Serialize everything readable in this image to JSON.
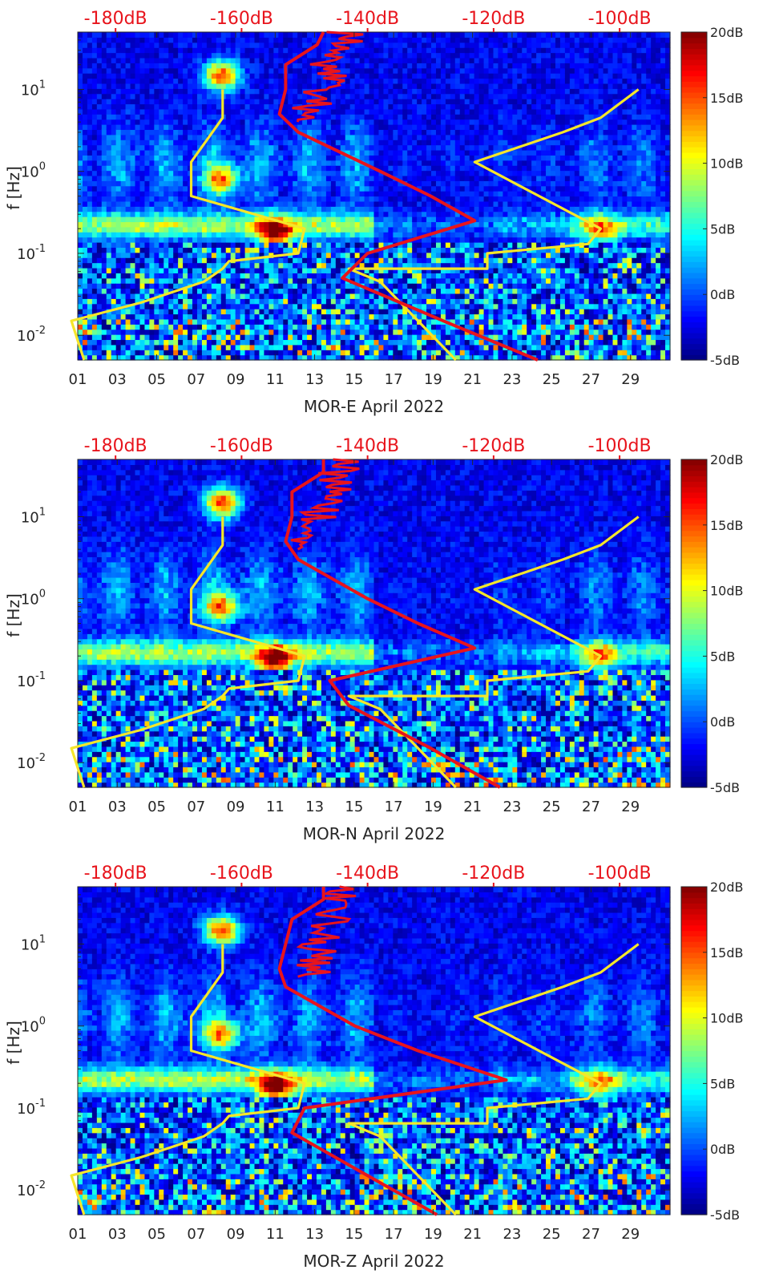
{
  "figure": {
    "ylabel": "f [Hz]",
    "colorbar": {
      "labels": [
        "20dB",
        "15dB",
        "10dB",
        "5dB",
        "0dB",
        "-5dB"
      ],
      "values": [
        20,
        15,
        10,
        5,
        0,
        -5
      ],
      "colormap": "jet",
      "range": [
        -5,
        20
      ]
    },
    "top_axis_labels": [
      "-180dB",
      "-160dB",
      "-140dB",
      "-120dB",
      "-100dB"
    ],
    "top_axis_values": [
      -180,
      -160,
      -140,
      -120,
      -100
    ],
    "x_tick_labels": [
      "01",
      "03",
      "05",
      "07",
      "09",
      "11",
      "13",
      "15",
      "17",
      "19",
      "21",
      "23",
      "25",
      "27",
      "29"
    ],
    "y_tick_labels": [
      "10^1",
      "10^0",
      "10^-1",
      "10^-2"
    ],
    "colors": {
      "psd_curve": "#e8141c",
      "noise_model": "#f5e62a",
      "top_axis_text": "#e8141c",
      "background_low": "#00008f",
      "background_high": "#800000"
    }
  },
  "chart_data": [
    {
      "type": "heatmap",
      "xlabel": "MOR-E April 2022",
      "ylabel": "f [Hz]",
      "x_range_days": [
        1,
        31
      ],
      "y_range_hz": [
        0.005,
        50
      ],
      "y_scale": "log",
      "clim_db": [
        -5,
        20
      ],
      "top_axis_db_range": [
        -186,
        -92
      ],
      "noise_model_line": {
        "name": "",
        "color": "#f5e62a",
        "x_db": [
          -185,
          -187,
          -176,
          -166,
          -163,
          -162,
          -151,
          -150,
          -168,
          -168,
          -163,
          -163
        ],
        "y_hz": [
          0.005,
          0.015,
          0.025,
          0.045,
          0.065,
          0.08,
          0.1,
          0.2,
          0.5,
          1.3,
          4.5,
          10
        ]
      },
      "noise_model_line_2": {
        "color": "#f5e62a",
        "x_db": [
          -126,
          -138,
          -143,
          -121,
          -121,
          -105,
          -103,
          -123,
          -109,
          -103,
          -97
        ],
        "y_hz": [
          0.005,
          0.045,
          0.065,
          0.065,
          0.1,
          0.13,
          0.2,
          1.3,
          3.0,
          4.5,
          10
        ]
      },
      "psd_curve": {
        "color": "#e8141c",
        "x_db": [
          -113,
          -128,
          -144,
          -140,
          -123,
          -130,
          -138,
          -151,
          -154,
          -153,
          -153,
          -148,
          -147
        ],
        "y_hz": [
          0.005,
          0.015,
          0.05,
          0.1,
          0.25,
          0.5,
          1.0,
          3.0,
          5.0,
          10,
          20,
          35,
          50
        ]
      },
      "highlights": [
        {
          "day": 8.3,
          "f_hz": 15,
          "db": 18
        },
        {
          "day": 11.0,
          "f_hz": 0.18,
          "db": 17
        },
        {
          "day": 8.3,
          "f_hz": 0.8,
          "db": 14
        },
        {
          "day": 27.5,
          "f_hz": 0.2,
          "db": 10
        }
      ]
    },
    {
      "type": "heatmap",
      "xlabel": "MOR-N April 2022",
      "ylabel": "f [Hz]",
      "x_range_days": [
        1,
        31
      ],
      "y_range_hz": [
        0.005,
        50
      ],
      "y_scale": "log",
      "clim_db": [
        -5,
        20
      ],
      "top_axis_db_range": [
        -186,
        -92
      ],
      "noise_model_line": {
        "color": "#f5e62a",
        "x_db": [
          -185,
          -187,
          -176,
          -166,
          -163,
          -162,
          -151,
          -150,
          -168,
          -168,
          -163,
          -163
        ],
        "y_hz": [
          0.005,
          0.015,
          0.025,
          0.045,
          0.065,
          0.08,
          0.1,
          0.2,
          0.5,
          1.3,
          4.5,
          10
        ]
      },
      "noise_model_line_2": {
        "color": "#f5e62a",
        "x_db": [
          -126,
          -138,
          -143,
          -121,
          -121,
          -105,
          -103,
          -123,
          -109,
          -103,
          -97
        ],
        "y_hz": [
          0.005,
          0.045,
          0.065,
          0.065,
          0.1,
          0.13,
          0.2,
          1.3,
          3.0,
          4.5,
          10
        ]
      },
      "psd_curve": {
        "color": "#e8141c",
        "x_db": [
          -119,
          -130,
          -143,
          -146,
          -123,
          -132,
          -140,
          -151,
          -153,
          -152,
          -152,
          -147,
          -147
        ],
        "y_hz": [
          0.005,
          0.015,
          0.05,
          0.1,
          0.25,
          0.5,
          1.0,
          3.0,
          5.0,
          10,
          20,
          35,
          50
        ]
      },
      "highlights": [
        {
          "day": 8.3,
          "f_hz": 15,
          "db": 18
        },
        {
          "day": 11.0,
          "f_hz": 0.18,
          "db": 17
        },
        {
          "day": 8.3,
          "f_hz": 0.8,
          "db": 14
        },
        {
          "day": 27.5,
          "f_hz": 0.2,
          "db": 10
        }
      ]
    },
    {
      "type": "heatmap",
      "xlabel": "MOR-Z April 2022",
      "ylabel": "f [Hz]",
      "x_range_days": [
        1,
        31
      ],
      "y_range_hz": [
        0.005,
        50
      ],
      "y_scale": "log",
      "clim_db": [
        -5,
        20
      ],
      "top_axis_db_range": [
        -186,
        -92
      ],
      "noise_model_line": {
        "color": "#f5e62a",
        "x_db": [
          -185,
          -187,
          -176,
          -166,
          -163,
          -162,
          -151,
          -150,
          -168,
          -168,
          -163,
          -163
        ],
        "y_hz": [
          0.005,
          0.015,
          0.025,
          0.045,
          0.065,
          0.08,
          0.1,
          0.2,
          0.5,
          1.3,
          4.5,
          10
        ]
      },
      "noise_model_line_2": {
        "color": "#f5e62a",
        "x_db": [
          -126,
          -138,
          -143,
          -121,
          -121,
          -105,
          -103,
          -123,
          -109,
          -103,
          -97
        ],
        "y_hz": [
          0.005,
          0.045,
          0.065,
          0.065,
          0.1,
          0.13,
          0.2,
          1.3,
          3.0,
          4.5,
          10
        ]
      },
      "psd_curve": {
        "color": "#e8141c",
        "x_db": [
          -129,
          -140,
          -152,
          -150,
          -118,
          -132,
          -142,
          -153,
          -154,
          -153,
          -152,
          -147,
          -147
        ],
        "y_hz": [
          0.005,
          0.015,
          0.05,
          0.1,
          0.22,
          0.5,
          1.0,
          3.0,
          5.0,
          10,
          20,
          35,
          50
        ]
      },
      "highlights": [
        {
          "day": 8.3,
          "f_hz": 15,
          "db": 18
        },
        {
          "day": 11.0,
          "f_hz": 0.18,
          "db": 17
        },
        {
          "day": 8.3,
          "f_hz": 0.8,
          "db": 14
        },
        {
          "day": 27.5,
          "f_hz": 0.2,
          "db": 10
        }
      ]
    }
  ]
}
